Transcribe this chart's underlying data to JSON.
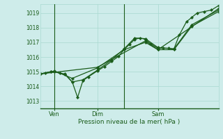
{
  "bg_color": "#ceecea",
  "line_color": "#1a5c1a",
  "grid_color": "#a8d8d0",
  "text_color": "#1a5c1a",
  "ylabel_ticks": [
    1013,
    1014,
    1015,
    1016,
    1017,
    1018,
    1019
  ],
  "xlabel_labels": [
    "Ven",
    "Dim",
    "Sam"
  ],
  "xlabel_bottom": "Pression niveau de la mer( hPa )",
  "xlim": [
    0,
    100
  ],
  "ylim": [
    1012.5,
    1019.6
  ],
  "vlines_x": [
    8,
    47
  ],
  "series1": [
    [
      0,
      1014.85
    ],
    [
      3,
      1014.9
    ],
    [
      6,
      1015.0
    ],
    [
      8,
      1015.0
    ],
    [
      11,
      1014.9
    ],
    [
      14,
      1014.85
    ],
    [
      18,
      1014.3
    ],
    [
      21,
      1013.25
    ],
    [
      24,
      1014.4
    ],
    [
      27,
      1014.65
    ],
    [
      32,
      1015.05
    ],
    [
      36,
      1015.35
    ],
    [
      40,
      1015.7
    ],
    [
      44,
      1016.05
    ],
    [
      47,
      1016.5
    ],
    [
      50,
      1016.85
    ],
    [
      53,
      1017.2
    ],
    [
      56,
      1017.3
    ],
    [
      59,
      1017.2
    ],
    [
      62,
      1016.9
    ],
    [
      66,
      1016.6
    ],
    [
      69,
      1016.6
    ],
    [
      72,
      1016.6
    ],
    [
      75,
      1016.55
    ],
    [
      78,
      1017.5
    ],
    [
      82,
      1018.4
    ],
    [
      85,
      1018.7
    ],
    [
      88,
      1019.0
    ],
    [
      92,
      1019.1
    ],
    [
      96,
      1019.2
    ],
    [
      100,
      1019.5
    ]
  ],
  "series2": [
    [
      0,
      1014.85
    ],
    [
      6,
      1015.0
    ],
    [
      8,
      1015.0
    ],
    [
      14,
      1014.8
    ],
    [
      18,
      1014.3
    ],
    [
      24,
      1014.45
    ],
    [
      32,
      1015.1
    ],
    [
      40,
      1015.8
    ],
    [
      47,
      1016.55
    ],
    [
      53,
      1017.3
    ],
    [
      59,
      1017.25
    ],
    [
      66,
      1016.65
    ],
    [
      75,
      1016.55
    ],
    [
      85,
      1018.2
    ],
    [
      100,
      1019.2
    ]
  ],
  "series3": [
    [
      0,
      1014.85
    ],
    [
      8,
      1015.05
    ],
    [
      18,
      1014.55
    ],
    [
      32,
      1015.25
    ],
    [
      47,
      1016.5
    ],
    [
      59,
      1017.0
    ],
    [
      66,
      1016.5
    ],
    [
      75,
      1016.5
    ],
    [
      85,
      1018.1
    ],
    [
      100,
      1019.1
    ]
  ],
  "series4": [
    [
      0,
      1014.85
    ],
    [
      32,
      1015.3
    ],
    [
      59,
      1017.1
    ],
    [
      66,
      1016.5
    ],
    [
      100,
      1019.3
    ]
  ]
}
